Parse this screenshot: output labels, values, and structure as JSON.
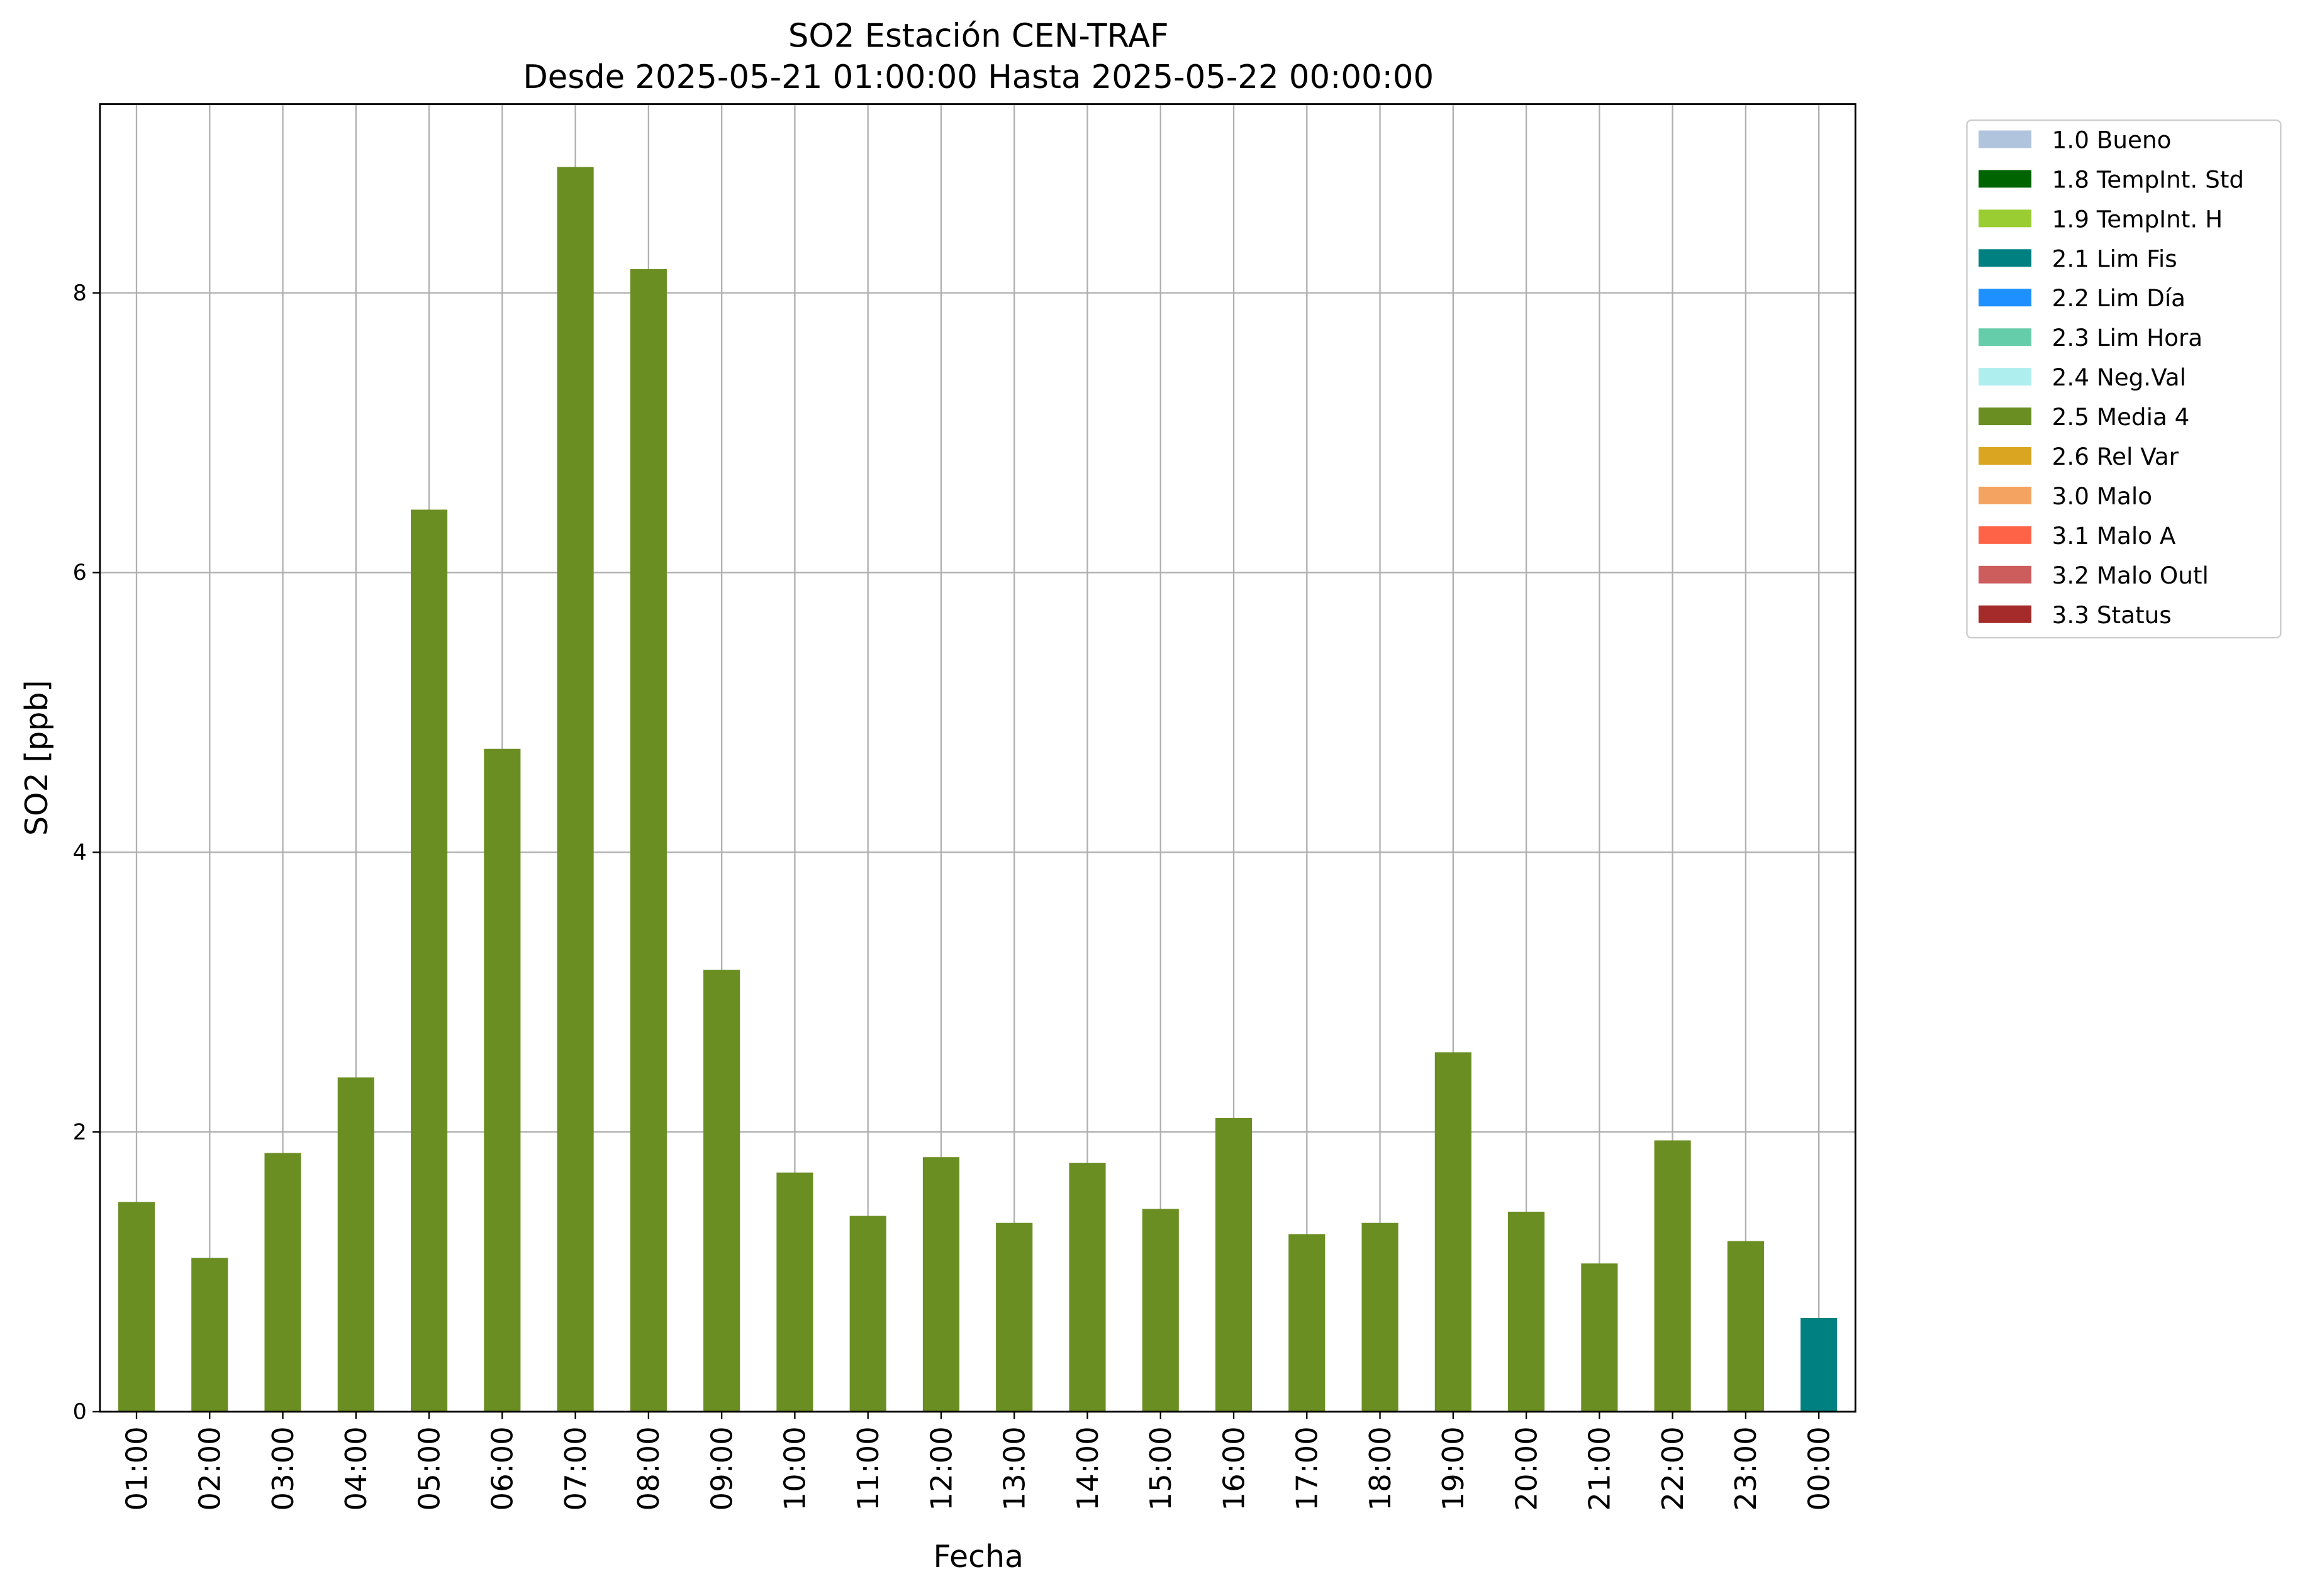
{
  "chart_data": {
    "type": "bar",
    "stacked": true,
    "title": "SO2 Estación CEN-TRAF",
    "subtitle": "Desde 2025-05-21 01:00:00 Hasta 2025-05-22 00:00:00",
    "x_label": "Fecha",
    "y_label": "SO2 [ppb]",
    "categories": [
      "01:00",
      "02:00",
      "03:00",
      "04:00",
      "05:00",
      "06:00",
      "07:00",
      "08:00",
      "09:00",
      "10:00",
      "11:00",
      "12:00",
      "13:00",
      "14:00",
      "15:00",
      "16:00",
      "17:00",
      "18:00",
      "19:00",
      "20:00",
      "21:00",
      "22:00",
      "23:00",
      "00:00"
    ],
    "series": [
      {
        "name": "1.0 Bueno",
        "color": "#b0c4de",
        "values": [
          null,
          null,
          null,
          null,
          null,
          null,
          null,
          null,
          null,
          null,
          null,
          null,
          null,
          null,
          null,
          null,
          null,
          null,
          null,
          null,
          null,
          null,
          null,
          null
        ]
      },
      {
        "name": "1.8 TempInt. Std",
        "color": "#006400",
        "values": [
          null,
          null,
          null,
          null,
          null,
          null,
          null,
          null,
          null,
          null,
          null,
          null,
          null,
          null,
          null,
          null,
          null,
          null,
          null,
          null,
          null,
          null,
          null,
          null
        ]
      },
      {
        "name": "1.9 TempInt. H",
        "color": "#9acd32",
        "values": [
          null,
          null,
          null,
          null,
          null,
          null,
          null,
          null,
          null,
          null,
          null,
          null,
          null,
          null,
          null,
          null,
          null,
          null,
          null,
          null,
          null,
          null,
          null,
          null
        ]
      },
      {
        "name": "2.1 Lim Fis",
        "color": "#008080",
        "values": [
          null,
          null,
          null,
          null,
          null,
          null,
          null,
          null,
          null,
          null,
          null,
          null,
          null,
          null,
          null,
          null,
          null,
          null,
          null,
          null,
          null,
          null,
          null,
          0.67
        ]
      },
      {
        "name": "2.2 Lim Día",
        "color": "#1e90ff",
        "values": [
          null,
          null,
          null,
          null,
          null,
          null,
          null,
          null,
          null,
          null,
          null,
          null,
          null,
          null,
          null,
          null,
          null,
          null,
          null,
          null,
          null,
          null,
          null,
          null
        ]
      },
      {
        "name": "2.3 Lim Hora",
        "color": "#66cdaa",
        "values": [
          null,
          null,
          null,
          null,
          null,
          null,
          null,
          null,
          null,
          null,
          null,
          null,
          null,
          null,
          null,
          null,
          null,
          null,
          null,
          null,
          null,
          null,
          null,
          null
        ]
      },
      {
        "name": "2.4 Neg.Val",
        "color": "#afeeee",
        "values": [
          null,
          null,
          null,
          null,
          null,
          null,
          null,
          null,
          null,
          null,
          null,
          null,
          null,
          null,
          null,
          null,
          null,
          null,
          null,
          null,
          null,
          null,
          null,
          null
        ]
      },
      {
        "name": "2.5 Media 4",
        "color": "#6b8e23",
        "values": [
          1.5,
          1.1,
          1.85,
          2.39,
          6.45,
          4.74,
          8.9,
          8.17,
          3.16,
          1.71,
          1.4,
          1.82,
          1.35,
          1.78,
          1.45,
          2.1,
          1.27,
          1.35,
          2.57,
          1.43,
          1.06,
          1.94,
          1.22,
          null
        ]
      },
      {
        "name": "2.6 Rel Var",
        "color": "#daa520",
        "values": [
          null,
          null,
          null,
          null,
          null,
          null,
          null,
          null,
          null,
          null,
          null,
          null,
          null,
          null,
          null,
          null,
          null,
          null,
          null,
          null,
          null,
          null,
          null,
          null
        ]
      },
      {
        "name": "3.0 Malo",
        "color": "#f4a460",
        "values": [
          null,
          null,
          null,
          null,
          null,
          null,
          null,
          null,
          null,
          null,
          null,
          null,
          null,
          null,
          null,
          null,
          null,
          null,
          null,
          null,
          null,
          null,
          null,
          null
        ]
      },
      {
        "name": "3.1 Malo A",
        "color": "#ff6347",
        "values": [
          null,
          null,
          null,
          null,
          null,
          null,
          null,
          null,
          null,
          null,
          null,
          null,
          null,
          null,
          null,
          null,
          null,
          null,
          null,
          null,
          null,
          null,
          null,
          null
        ]
      },
      {
        "name": "3.2 Malo Outl",
        "color": "#cd5c5c",
        "values": [
          null,
          null,
          null,
          null,
          null,
          null,
          null,
          null,
          null,
          null,
          null,
          null,
          null,
          null,
          null,
          null,
          null,
          null,
          null,
          null,
          null,
          null,
          null,
          null
        ]
      },
      {
        "name": "3.3 Status",
        "color": "#a52a2a",
        "values": [
          null,
          null,
          null,
          null,
          null,
          null,
          null,
          null,
          null,
          null,
          null,
          null,
          null,
          null,
          null,
          null,
          null,
          null,
          null,
          null,
          null,
          null,
          null,
          null
        ]
      }
    ],
    "ylim": [
      0,
      9.35
    ],
    "yticks": [
      0,
      2,
      4,
      6,
      8
    ],
    "grid": true,
    "legend": "outside-right"
  }
}
